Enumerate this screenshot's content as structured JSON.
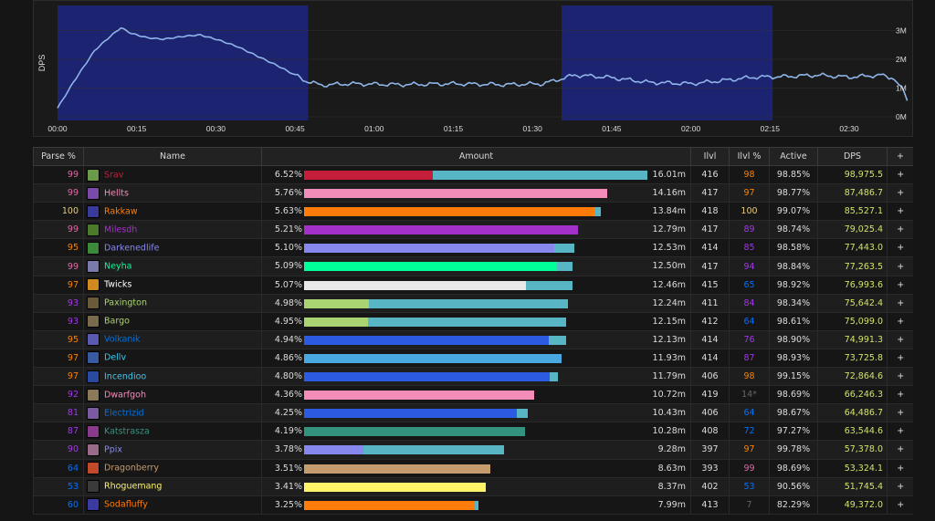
{
  "graph": {
    "y_axis_label": "DPS",
    "y_ticks": [
      "3M",
      "2M",
      "1M",
      "0M"
    ],
    "x_ticks": [
      "00:00",
      "00:15",
      "00:30",
      "00:45",
      "01:00",
      "01:15",
      "01:30",
      "01:45",
      "02:00",
      "02:15",
      "02:30"
    ],
    "line_color": "#8fb4e8",
    "highlight_color": "#1c2370"
  },
  "table": {
    "headers": {
      "parse": "Parse %",
      "name": "Name",
      "amount": "Amount",
      "ilvl": "Ilvl",
      "ilvl_pct": "Ilvl %",
      "active": "Active",
      "dps": "DPS",
      "plus": "+"
    },
    "rows": [
      {
        "parse": "99",
        "parse_color": "#e268a8",
        "name": "Srav",
        "name_color": "#c41e3a",
        "icon": "#6a9a4a",
        "pct": "6.52%",
        "amount": "16.01m",
        "ilvl": "416",
        "ilvl_pct": "98",
        "ilvl_color": "#ff8000",
        "active": "98.85%",
        "dps": "98,975.5",
        "plus": "+",
        "bar1_color": "#c41e3a",
        "bar1_frac": 0.376,
        "bar2_frac": 0.624
      },
      {
        "parse": "99",
        "parse_color": "#e268a8",
        "name": "Hellts",
        "name_color": "#f48cba",
        "icon": "#7a4aa8",
        "pct": "5.76%",
        "amount": "14.16m",
        "ilvl": "417",
        "ilvl_pct": "97",
        "ilvl_color": "#ff8000",
        "active": "98.77%",
        "dps": "87,486.7",
        "plus": "+",
        "bar1_color": "#f48cba",
        "bar1_frac": 0.884,
        "bar2_frac": 0
      },
      {
        "parse": "100",
        "parse_color": "#e5cc80",
        "name": "Rakkaw",
        "name_color": "#ff7c0a",
        "icon": "#3a3a9a",
        "pct": "5.63%",
        "amount": "13.84m",
        "ilvl": "418",
        "ilvl_pct": "100",
        "ilvl_color": "#e5cc80",
        "active": "99.07%",
        "dps": "85,527.1",
        "plus": "+",
        "bar1_color": "#ff7c0a",
        "bar1_frac": 0.846,
        "bar2_frac": 0.018
      },
      {
        "parse": "99",
        "parse_color": "#e268a8",
        "name": "Milesdh",
        "name_color": "#a330c9",
        "icon": "#4a7a2a",
        "pct": "5.21%",
        "amount": "12.79m",
        "ilvl": "417",
        "ilvl_pct": "89",
        "ilvl_color": "#a335ee",
        "active": "98.74%",
        "dps": "79,025.4",
        "plus": "+",
        "bar1_color": "#a330c9",
        "bar1_frac": 0.799,
        "bar2_frac": 0
      },
      {
        "parse": "95",
        "parse_color": "#ff8000",
        "name": "Darkenedlife",
        "name_color": "#8788ee",
        "icon": "#3a8a3a",
        "pct": "5.10%",
        "amount": "12.53m",
        "ilvl": "414",
        "ilvl_pct": "85",
        "ilvl_color": "#a335ee",
        "active": "98.58%",
        "dps": "77,443.0",
        "plus": "+",
        "bar1_color": "#8788ee",
        "bar1_frac": 0.728,
        "bar2_frac": 0.058
      },
      {
        "parse": "99",
        "parse_color": "#e268a8",
        "name": "Neyha",
        "name_color": "#00ff98",
        "icon": "#7a7aaa",
        "pct": "5.09%",
        "amount": "12.50m",
        "ilvl": "417",
        "ilvl_pct": "94",
        "ilvl_color": "#a335ee",
        "active": "98.84%",
        "dps": "77,263.5",
        "plus": "+",
        "bar1_color": "#00ff98",
        "bar1_frac": 0.738,
        "bar2_frac": 0.045
      },
      {
        "parse": "97",
        "parse_color": "#ff8000",
        "name": "Twicks",
        "name_color": "#ffffff",
        "icon": "#d08a20",
        "pct": "5.07%",
        "amount": "12.46m",
        "ilvl": "415",
        "ilvl_pct": "65",
        "ilvl_color": "#0070ff",
        "active": "98.92%",
        "dps": "76,993.6",
        "plus": "+",
        "bar1_color": "#e8e8e8",
        "bar1_frac": 0.646,
        "bar2_frac": 0.136
      },
      {
        "parse": "93",
        "parse_color": "#a335ee",
        "name": "Paxington",
        "name_color": "#aad372",
        "icon": "#6a5a3a",
        "pct": "4.98%",
        "amount": "12.24m",
        "ilvl": "411",
        "ilvl_pct": "84",
        "ilvl_color": "#a335ee",
        "active": "98.34%",
        "dps": "75,642.4",
        "plus": "+",
        "bar1_color": "#aad372",
        "bar1_frac": 0.189,
        "bar2_frac": 0.579
      },
      {
        "parse": "93",
        "parse_color": "#a335ee",
        "name": "Bargo",
        "name_color": "#aad372",
        "icon": "#7a6a4a",
        "pct": "4.95%",
        "amount": "12.15m",
        "ilvl": "412",
        "ilvl_pct": "64",
        "ilvl_color": "#0070ff",
        "active": "98.61%",
        "dps": "75,099.0",
        "plus": "+",
        "bar1_color": "#aad372",
        "bar1_frac": 0.186,
        "bar2_frac": 0.576
      },
      {
        "parse": "95",
        "parse_color": "#ff8000",
        "name": "Volkanik",
        "name_color": "#0070dd",
        "icon": "#5a5ab0",
        "pct": "4.94%",
        "amount": "12.13m",
        "ilvl": "414",
        "ilvl_pct": "76",
        "ilvl_color": "#a335ee",
        "active": "98.90%",
        "dps": "74,991.3",
        "plus": "+",
        "bar1_color": "#2c5ae0",
        "bar1_frac": 0.713,
        "bar2_frac": 0.051
      },
      {
        "parse": "97",
        "parse_color": "#ff8000",
        "name": "Dellv",
        "name_color": "#3fc7eb",
        "icon": "#3a5aa0",
        "pct": "4.86%",
        "amount": "11.93m",
        "ilvl": "414",
        "ilvl_pct": "87",
        "ilvl_color": "#a335ee",
        "active": "98.93%",
        "dps": "73,725.8",
        "plus": "+",
        "bar1_color": "#4aa8e0",
        "bar1_frac": 0.751,
        "bar2_frac": 0
      },
      {
        "parse": "97",
        "parse_color": "#ff8000",
        "name": "Incendioo",
        "name_color": "#3fc7eb",
        "icon": "#2a4aa0",
        "pct": "4.80%",
        "amount": "11.79m",
        "ilvl": "406",
        "ilvl_pct": "98",
        "ilvl_color": "#ff8000",
        "active": "99.15%",
        "dps": "72,864.6",
        "plus": "+",
        "bar1_color": "#2c5ae0",
        "bar1_frac": 0.716,
        "bar2_frac": 0.024
      },
      {
        "parse": "92",
        "parse_color": "#a335ee",
        "name": "Dwarfgoh",
        "name_color": "#f48cba",
        "icon": "#8a7a5a",
        "pct": "4.36%",
        "amount": "10.72m",
        "ilvl": "419",
        "ilvl_pct": "14*",
        "ilvl_color": "#666666",
        "active": "98.69%",
        "dps": "66,246.3",
        "plus": "+",
        "bar1_color": "#f48cba",
        "bar1_frac": 0.67,
        "bar2_frac": 0
      },
      {
        "parse": "81",
        "parse_color": "#a335ee",
        "name": "Electrizid",
        "name_color": "#0070dd",
        "icon": "#7a5aa0",
        "pct": "4.25%",
        "amount": "10.43m",
        "ilvl": "406",
        "ilvl_pct": "64",
        "ilvl_color": "#0070ff",
        "active": "98.67%",
        "dps": "64,486.7",
        "plus": "+",
        "bar1_color": "#2c5ae0",
        "bar1_frac": 0.621,
        "bar2_frac": 0.031
      },
      {
        "parse": "87",
        "parse_color": "#a335ee",
        "name": "Katstrasza",
        "name_color": "#33937f",
        "icon": "#8a3a8a",
        "pct": "4.19%",
        "amount": "10.28m",
        "ilvl": "408",
        "ilvl_pct": "72",
        "ilvl_color": "#0070ff",
        "active": "97.27%",
        "dps": "63,544.6",
        "plus": "+",
        "bar1_color": "#33937f",
        "bar1_frac": 0.643,
        "bar2_frac": 0
      },
      {
        "parse": "90",
        "parse_color": "#a335ee",
        "name": "Ppix",
        "name_color": "#8788ee",
        "icon": "#9a6a8a",
        "pct": "3.78%",
        "amount": "9.28m",
        "ilvl": "397",
        "ilvl_pct": "97",
        "ilvl_color": "#ff8000",
        "active": "99.78%",
        "dps": "57,378.0",
        "plus": "+",
        "bar1_color": "#8788ee",
        "bar1_frac": 0.173,
        "bar2_frac": 0.41
      },
      {
        "parse": "64",
        "parse_color": "#0070ff",
        "name": "Dragonberry",
        "name_color": "#c69b6d",
        "icon": "#c04a2a",
        "pct": "3.51%",
        "amount": "8.63m",
        "ilvl": "393",
        "ilvl_pct": "99",
        "ilvl_color": "#e268a8",
        "active": "98.69%",
        "dps": "53,324.1",
        "plus": "+",
        "bar1_color": "#c69b6d",
        "bar1_frac": 0.543,
        "bar2_frac": 0
      },
      {
        "parse": "53",
        "parse_color": "#0070ff",
        "name": "Rhoguemang",
        "name_color": "#fff468",
        "icon": "#3a3a3a",
        "pct": "3.41%",
        "amount": "8.37m",
        "ilvl": "402",
        "ilvl_pct": "53",
        "ilvl_color": "#0070ff",
        "active": "90.56%",
        "dps": "51,745.4",
        "plus": "+",
        "bar1_color": "#fff468",
        "bar1_frac": 0.53,
        "bar2_frac": 0
      },
      {
        "parse": "60",
        "parse_color": "#0070ff",
        "name": "Sodafluffy",
        "name_color": "#ff7c0a",
        "icon": "#3a3aa0",
        "pct": "3.25%",
        "amount": "7.99m",
        "ilvl": "413",
        "ilvl_pct": "7",
        "ilvl_color": "#666666",
        "active": "82.29%",
        "dps": "49,372.0",
        "plus": "+",
        "bar1_color": "#ff7c0a",
        "bar1_frac": 0.497,
        "bar2_frac": 0.011
      }
    ]
  }
}
